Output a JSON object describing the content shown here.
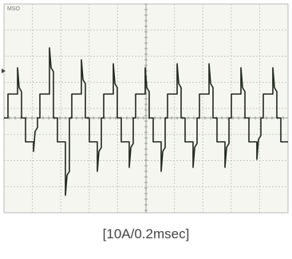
{
  "screen": {
    "label": "MSO",
    "caption": "[10A/0.2msec]"
  }
}
